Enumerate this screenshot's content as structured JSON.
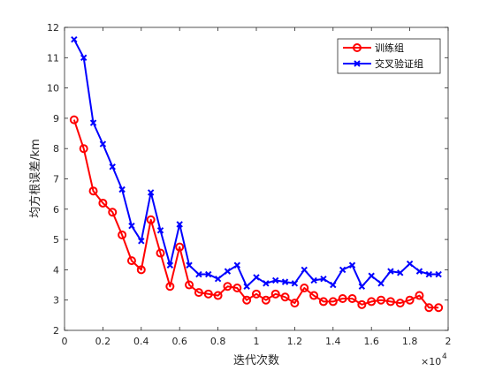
{
  "chart_data": {
    "type": "line",
    "xlabel": "迭代次数",
    "ylabel": "均方根误差/km",
    "x_exponent_label": "×10",
    "x_exponent_power": "4",
    "xlim": [
      0,
      20000
    ],
    "ylim": [
      2,
      12
    ],
    "x_ticks": [
      0,
      2000,
      4000,
      6000,
      8000,
      10000,
      12000,
      14000,
      16000,
      18000,
      20000
    ],
    "x_tick_labels": [
      "0",
      "0.2",
      "0.4",
      "0.6",
      "0.8",
      "1",
      "1.2",
      "1.4",
      "1.6",
      "1.8",
      "2"
    ],
    "y_ticks": [
      2,
      3,
      4,
      5,
      6,
      7,
      8,
      9,
      10,
      11,
      12
    ],
    "y_tick_labels": [
      "2",
      "3",
      "4",
      "5",
      "6",
      "7",
      "8",
      "9",
      "10",
      "11",
      "12"
    ],
    "grid": false,
    "legend_position": "top-right",
    "x": [
      500,
      1000,
      1500,
      2000,
      2500,
      3000,
      3500,
      4000,
      4500,
      5000,
      5500,
      6000,
      6500,
      7000,
      7500,
      8000,
      8500,
      9000,
      9500,
      10000,
      10500,
      11000,
      11500,
      12000,
      12500,
      13000,
      13500,
      14000,
      14500,
      15000,
      15500,
      16000,
      16500,
      17000,
      17500,
      18000,
      18500,
      19000,
      19500
    ],
    "series": [
      {
        "name": "训练组",
        "color": "#ff0000",
        "marker": "circle",
        "values": [
          8.95,
          8.0,
          6.6,
          6.2,
          5.9,
          5.15,
          4.3,
          4.0,
          5.65,
          4.55,
          3.45,
          4.75,
          3.5,
          3.25,
          3.2,
          3.15,
          3.45,
          3.4,
          3.0,
          3.2,
          3.0,
          3.2,
          3.1,
          2.9,
          3.4,
          3.15,
          2.95,
          2.95,
          3.05,
          3.05,
          2.85,
          2.95,
          3.0,
          2.95,
          2.9,
          3.0,
          3.15,
          2.75,
          2.75
        ]
      },
      {
        "name": "交叉验证组",
        "color": "#0000ff",
        "marker": "x",
        "values": [
          11.6,
          11.0,
          8.85,
          8.15,
          7.4,
          6.65,
          5.45,
          4.95,
          6.55,
          5.3,
          4.15,
          5.5,
          4.15,
          3.85,
          3.85,
          3.7,
          3.95,
          4.15,
          3.45,
          3.75,
          3.55,
          3.65,
          3.6,
          3.55,
          4.0,
          3.65,
          3.7,
          3.5,
          4.0,
          4.15,
          3.45,
          3.8,
          3.55,
          3.95,
          3.9,
          4.2,
          3.95,
          3.85,
          3.85
        ]
      }
    ]
  }
}
